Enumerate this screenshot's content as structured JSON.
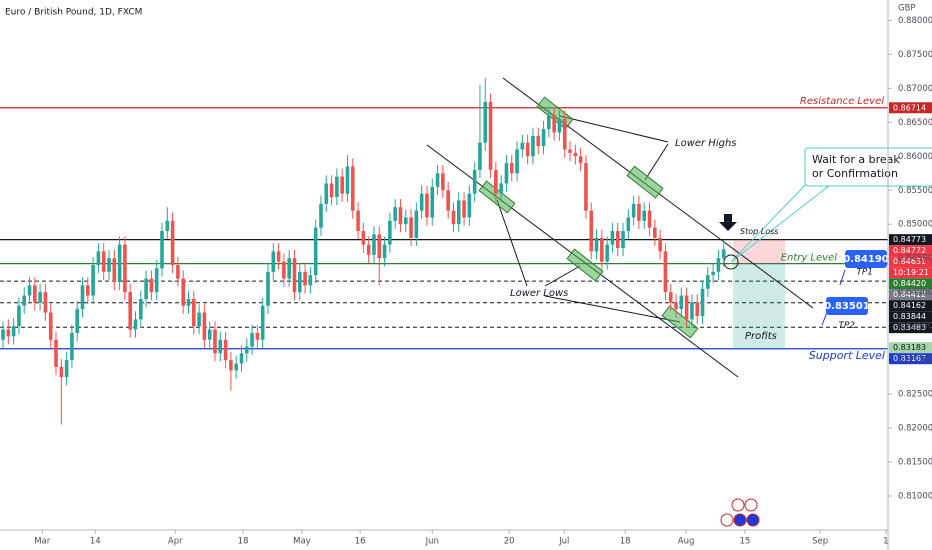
{
  "chart_data": {
    "type": "candlestick",
    "title": "Euro / British Pound, 1D, FXCM",
    "y_axis_label": "GBP",
    "up_color": "#26a69a",
    "down_color": "#ef5350",
    "open": [
      0.833,
      0.8345,
      0.8335,
      0.835,
      0.838,
      0.8395,
      0.841,
      0.8385,
      0.84,
      0.837,
      0.833,
      0.829,
      0.8275,
      0.83,
      0.834,
      0.8375,
      0.841,
      0.8395,
      0.844,
      0.846,
      0.843,
      0.845,
      0.8415,
      0.847,
      0.84,
      0.8345,
      0.836,
      0.839,
      0.842,
      0.84,
      0.8435,
      0.849,
      0.8505,
      0.844,
      0.842,
      0.838,
      0.839,
      0.835,
      0.837,
      0.833,
      0.8345,
      0.831,
      0.833,
      0.83,
      0.8285,
      0.8295,
      0.831,
      0.832,
      0.834,
      0.833,
      0.838,
      0.843,
      0.846,
      0.8445,
      0.842,
      0.845,
      0.84,
      0.843,
      0.841,
      0.8425,
      0.8495,
      0.853,
      0.856,
      0.854,
      0.857,
      0.8545,
      0.8585,
      0.852,
      0.849,
      0.847,
      0.8455,
      0.8485,
      0.845,
      0.847,
      0.8505,
      0.8525,
      0.85,
      0.851,
      0.848,
      0.852,
      0.8545,
      0.851,
      0.8555,
      0.8575,
      0.855,
      0.852,
      0.85,
      0.8535,
      0.851,
      0.8545,
      0.858,
      0.862,
      0.868,
      0.858,
      0.8545,
      0.856,
      0.859,
      0.8575,
      0.861,
      0.862,
      0.86,
      0.863,
      0.8615,
      0.864,
      0.866,
      0.8635,
      0.8655,
      0.861,
      0.8605,
      0.86,
      0.859,
      0.852,
      0.846,
      0.848,
      0.8445,
      0.847,
      0.849,
      0.8465,
      0.849,
      0.851,
      0.853,
      0.8505,
      0.852,
      0.8495,
      0.848,
      0.846,
      0.84,
      0.8385,
      0.8375,
      0.8395,
      0.836,
      0.8385,
      0.8365,
      0.8405,
      0.8425,
      0.843,
      0.845
    ],
    "high": [
      0.8357,
      0.836,
      0.8362,
      0.8392,
      0.8407,
      0.8422,
      0.8422,
      0.8412,
      0.8412,
      0.8382,
      0.8342,
      0.8302,
      0.8312,
      0.8352,
      0.8387,
      0.8422,
      0.8422,
      0.8452,
      0.8472,
      0.8472,
      0.8462,
      0.8462,
      0.8482,
      0.8482,
      0.8412,
      0.8372,
      0.8402,
      0.8432,
      0.8432,
      0.8447,
      0.8502,
      0.8525,
      0.8517,
      0.8452,
      0.8432,
      0.8402,
      0.8402,
      0.8382,
      0.8382,
      0.8357,
      0.8357,
      0.8342,
      0.8342,
      0.8312,
      0.8307,
      0.8322,
      0.8332,
      0.8352,
      0.8352,
      0.8392,
      0.8442,
      0.8472,
      0.8472,
      0.8457,
      0.8462,
      0.8462,
      0.8442,
      0.8442,
      0.8437,
      0.8507,
      0.8542,
      0.8572,
      0.8572,
      0.8582,
      0.8582,
      0.8602,
      0.8597,
      0.8532,
      0.8502,
      0.8482,
      0.8497,
      0.8497,
      0.8482,
      0.8517,
      0.8537,
      0.8537,
      0.8522,
      0.8522,
      0.8532,
      0.8557,
      0.8557,
      0.8567,
      0.8587,
      0.8587,
      0.8562,
      0.8532,
      0.8547,
      0.8547,
      0.8557,
      0.8592,
      0.8705,
      0.8715,
      0.8692,
      0.8592,
      0.8572,
      0.8602,
      0.8602,
      0.8622,
      0.8632,
      0.8632,
      0.8642,
      0.8642,
      0.8652,
      0.8672,
      0.8672,
      0.8667,
      0.8667,
      0.8622,
      0.8617,
      0.8612,
      0.8602,
      0.8532,
      0.8492,
      0.8492,
      0.8482,
      0.8502,
      0.8502,
      0.8502,
      0.8522,
      0.8542,
      0.8542,
      0.8532,
      0.8532,
      0.8507,
      0.8492,
      0.8472,
      0.8412,
      0.8397,
      0.8407,
      0.8407,
      0.8397,
      0.8397,
      0.8417,
      0.8437,
      0.8442,
      0.8462,
      0.8477
    ],
    "low": [
      0.8318,
      0.8323,
      0.8323,
      0.8338,
      0.8368,
      0.8383,
      0.8373,
      0.8373,
      0.8358,
      0.8318,
      0.8278,
      0.8205,
      0.8263,
      0.8288,
      0.8328,
      0.8363,
      0.8383,
      0.8383,
      0.8428,
      0.8418,
      0.8418,
      0.8403,
      0.8403,
      0.8388,
      0.8333,
      0.8333,
      0.8348,
      0.8378,
      0.8388,
      0.8388,
      0.8423,
      0.8478,
      0.8428,
      0.8408,
      0.8368,
      0.8368,
      0.8338,
      0.8338,
      0.8318,
      0.8318,
      0.8298,
      0.8298,
      0.8288,
      0.8255,
      0.8273,
      0.8283,
      0.8298,
      0.8308,
      0.8318,
      0.8318,
      0.8368,
      0.8418,
      0.8433,
      0.8408,
      0.8408,
      0.8388,
      0.8388,
      0.8398,
      0.8398,
      0.8413,
      0.8483,
      0.8518,
      0.8528,
      0.8528,
      0.8533,
      0.8533,
      0.8508,
      0.8478,
      0.8458,
      0.8443,
      0.8443,
      0.841,
      0.8438,
      0.8458,
      0.8493,
      0.8488,
      0.8488,
      0.8468,
      0.8468,
      0.8508,
      0.8498,
      0.8498,
      0.8543,
      0.8538,
      0.8508,
      0.8488,
      0.8488,
      0.8498,
      0.8498,
      0.8533,
      0.8568,
      0.8608,
      0.8568,
      0.8533,
      0.8533,
      0.8548,
      0.8563,
      0.8563,
      0.8598,
      0.8588,
      0.8588,
      0.8603,
      0.8603,
      0.8628,
      0.8623,
      0.8623,
      0.8598,
      0.8593,
      0.8588,
      0.8578,
      0.8508,
      0.8448,
      0.8448,
      0.8433,
      0.8433,
      0.8458,
      0.8453,
      0.8453,
      0.8478,
      0.8498,
      0.8493,
      0.8493,
      0.8483,
      0.8468,
      0.8448,
      0.8388,
      0.8373,
      0.8363,
      0.8363,
      0.8348,
      0.8348,
      0.8353,
      0.8353,
      0.8393,
      0.8413,
      0.8418,
      0.8438
    ],
    "close": [
      0.8345,
      0.8335,
      0.835,
      0.838,
      0.8395,
      0.841,
      0.8385,
      0.84,
      0.837,
      0.833,
      0.829,
      0.8275,
      0.83,
      0.834,
      0.8375,
      0.841,
      0.8395,
      0.844,
      0.846,
      0.843,
      0.845,
      0.8415,
      0.847,
      0.84,
      0.8345,
      0.836,
      0.839,
      0.842,
      0.84,
      0.8435,
      0.849,
      0.8505,
      0.844,
      0.842,
      0.838,
      0.839,
      0.835,
      0.837,
      0.833,
      0.8345,
      0.831,
      0.833,
      0.83,
      0.8285,
      0.8295,
      0.831,
      0.832,
      0.834,
      0.833,
      0.838,
      0.843,
      0.846,
      0.8445,
      0.842,
      0.845,
      0.84,
      0.843,
      0.841,
      0.8425,
      0.8495,
      0.853,
      0.856,
      0.854,
      0.857,
      0.8545,
      0.8585,
      0.852,
      0.849,
      0.847,
      0.8455,
      0.8485,
      0.845,
      0.847,
      0.8505,
      0.8525,
      0.85,
      0.851,
      0.848,
      0.852,
      0.8545,
      0.851,
      0.8555,
      0.8575,
      0.855,
      0.852,
      0.85,
      0.8535,
      0.851,
      0.8545,
      0.858,
      0.862,
      0.868,
      0.858,
      0.8545,
      0.856,
      0.859,
      0.8575,
      0.861,
      0.862,
      0.86,
      0.863,
      0.8615,
      0.864,
      0.866,
      0.8635,
      0.8655,
      0.861,
      0.8605,
      0.86,
      0.859,
      0.852,
      0.846,
      0.848,
      0.8445,
      0.847,
      0.849,
      0.8465,
      0.849,
      0.851,
      0.853,
      0.8505,
      0.852,
      0.8495,
      0.848,
      0.846,
      0.84,
      0.8385,
      0.8375,
      0.8395,
      0.836,
      0.8385,
      0.8365,
      0.8405,
      0.8425,
      0.843,
      0.845,
      0.8463
    ],
    "xlim": [
      -0.57,
      167
    ],
    "xticks": [
      {
        "value": 7.4,
        "label": "Mar"
      },
      {
        "value": 17.4,
        "label": "14"
      },
      {
        "value": 32.5,
        "label": "Apr"
      },
      {
        "value": 45.3,
        "label": "18"
      },
      {
        "value": 56.4,
        "label": "May"
      },
      {
        "value": 67.4,
        "label": "16"
      },
      {
        "value": 81,
        "label": "Jun"
      },
      {
        "value": 95.5,
        "label": "20"
      },
      {
        "value": 105.9,
        "label": "Jul"
      },
      {
        "value": 117.4,
        "label": "18"
      },
      {
        "value": 128.9,
        "label": "Aug"
      },
      {
        "value": 140,
        "label": "15"
      },
      {
        "value": 154.2,
        "label": "Sep"
      },
      {
        "value": 166.6,
        "label": "1"
      }
    ],
    "ylim": [
      0.805,
      0.883
    ],
    "yticks": [
      {
        "value": 0.81,
        "label": "0.81000"
      },
      {
        "value": 0.815,
        "label": "0.81500"
      },
      {
        "value": 0.82,
        "label": "0.82000"
      },
      {
        "value": 0.825,
        "label": "0.82500"
      },
      {
        "value": 0.83,
        "label": "0.83000"
      },
      {
        "value": 0.835,
        "label": "0.83500"
      },
      {
        "value": 0.84,
        "label": "0.84000"
      },
      {
        "value": 0.845,
        "label": "0.84500"
      },
      {
        "value": 0.85,
        "label": "0.85000"
      },
      {
        "value": 0.855,
        "label": "0.85500"
      },
      {
        "value": 0.86,
        "label": "0.86000"
      },
      {
        "value": 0.865,
        "label": "0.86500"
      },
      {
        "value": 0.87,
        "label": "0.87000"
      },
      {
        "value": 0.875,
        "label": "0.87500"
      },
      {
        "value": 0.88,
        "label": "0.88000"
      }
    ],
    "levels": [
      {
        "name": "Resistance Level",
        "value": 0.86714,
        "color": "#c62828"
      },
      {
        "name": "Stop Loss",
        "value": 0.84773,
        "color": "#131722"
      },
      {
        "name": "Entry Level",
        "value": 0.8442,
        "color": "#2e7d32"
      },
      {
        "name": "TP1",
        "value": 0.84162,
        "color": "#131722",
        "dashed": true
      },
      {
        "value": 0.83844,
        "color": "#131722",
        "dashed": true
      },
      {
        "name": "TP2",
        "value": 0.83483,
        "color": "#131722",
        "dashed": true
      },
      {
        "name": "Support Level",
        "value": 0.83167,
        "color": "#1e3ad8"
      }
    ],
    "price_labels": [
      {
        "value": 0.86714,
        "color": "#c62828"
      },
      {
        "value": 0.84773,
        "color": "#131722"
      },
      {
        "value": 0.84772,
        "color": "#f23645"
      },
      {
        "value": 0.84631,
        "color": "#f23645",
        "countdown": "10:19:21"
      },
      {
        "value": 0.8442,
        "label": "0.84420",
        "color": "#2e7d32"
      },
      {
        "value": 0.84412,
        "color": "#787b86"
      },
      {
        "value": 0.84162,
        "color": "#131722"
      },
      {
        "value": 0.83844,
        "color": "#131722"
      },
      {
        "value": 0.83483,
        "color": "#131722"
      },
      {
        "value": 0.83183,
        "color": "#a5d6a7"
      },
      {
        "value": 0.83167,
        "color": "#1e3ad8"
      }
    ],
    "targets": [
      {
        "value": 0.8419,
        "label": "0.84190"
      },
      {
        "value": 0.83501,
        "label": "0.83501"
      }
    ],
    "annotations": {
      "lower_highs": "Lower Highs",
      "lower_lows": "Lower Lows",
      "wait_line1": "Wait for a break",
      "wait_line2": "or Confirmation",
      "profits": "Profits"
    }
  }
}
